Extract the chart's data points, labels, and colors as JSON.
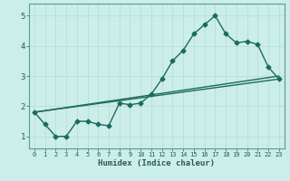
{
  "xlabel": "Humidex (Indice chaleur)",
  "background_color": "#cceee8",
  "grid_color": "#b8ddd8",
  "line_color": "#1a6b60",
  "xlim": [
    -0.5,
    23.5
  ],
  "ylim": [
    0.6,
    5.4
  ],
  "xticks": [
    0,
    1,
    2,
    3,
    4,
    5,
    6,
    7,
    8,
    9,
    10,
    11,
    12,
    13,
    14,
    15,
    16,
    17,
    18,
    19,
    20,
    21,
    22,
    23
  ],
  "yticks": [
    1,
    2,
    3,
    4,
    5
  ],
  "series1_x": [
    0,
    1,
    2,
    3,
    4,
    5,
    6,
    7,
    8,
    9,
    10,
    11,
    12,
    13,
    14,
    15,
    16,
    17,
    18,
    19,
    20,
    21,
    22,
    23
  ],
  "series1_y": [
    1.8,
    1.4,
    1.0,
    1.0,
    1.5,
    1.5,
    1.4,
    1.35,
    2.1,
    2.05,
    2.1,
    2.4,
    2.9,
    3.5,
    3.85,
    4.4,
    4.7,
    5.0,
    4.4,
    4.1,
    4.15,
    4.05,
    3.3,
    2.9
  ],
  "series2_x": [
    0,
    23
  ],
  "series2_y": [
    1.8,
    2.9
  ],
  "series3_x": [
    0,
    23
  ],
  "series3_y": [
    1.8,
    3.0
  ],
  "marker": "D",
  "marker_size": 2.5,
  "line_width": 1.0
}
